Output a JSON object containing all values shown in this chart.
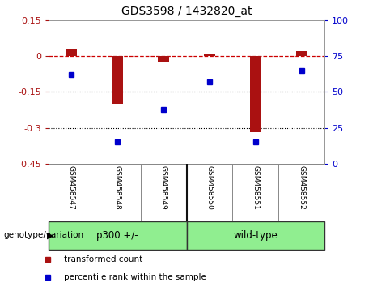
{
  "title": "GDS3598 / 1432820_at",
  "samples": [
    "GSM458547",
    "GSM458548",
    "GSM458549",
    "GSM458550",
    "GSM458551",
    "GSM458552"
  ],
  "red_bars": [
    0.03,
    -0.2,
    -0.025,
    0.01,
    -0.32,
    0.022
  ],
  "blue_dots": [
    62,
    15,
    38,
    57,
    15,
    65
  ],
  "ylim_left": [
    -0.45,
    0.15
  ],
  "ylim_right": [
    0,
    100
  ],
  "yticks_left": [
    0.15,
    0,
    -0.15,
    -0.3,
    -0.45
  ],
  "yticks_right": [
    100,
    75,
    50,
    25,
    0
  ],
  "group_label": "genotype/variation",
  "group_names": [
    "p300 +/-",
    "wild-type"
  ],
  "group_color": "#90ee90",
  "legend1": "transformed count",
  "legend2": "percentile rank within the sample",
  "bar_color": "#aa1111",
  "dot_color": "#0000cc",
  "hline_color": "#cc0000",
  "dotline_color": "#000000",
  "background_color": "#ffffff",
  "sample_bg": "#cccccc",
  "bar_width": 0.25
}
